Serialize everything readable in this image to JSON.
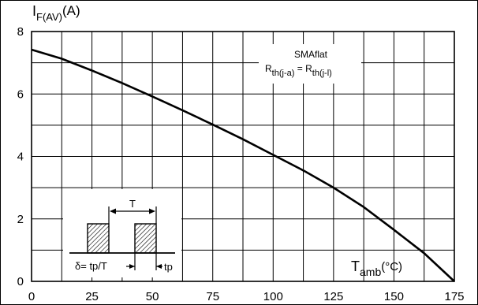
{
  "chart_data": {
    "type": "line",
    "ylabel_main": "I",
    "ylabel_sub": "F(AV)",
    "ylabel_unit": "(A)",
    "xlabel_main": "T",
    "xlabel_sub": "amb",
    "xlabel_unit": "(°C)",
    "xlim": [
      0,
      175
    ],
    "ylim": [
      0,
      8
    ],
    "x_ticks": [
      0,
      25,
      50,
      75,
      100,
      125,
      150,
      175
    ],
    "y_ticks": [
      0,
      2,
      4,
      6,
      8
    ],
    "x_grid": [
      0,
      12.5,
      25,
      37.5,
      50,
      62.5,
      75,
      87.5,
      100,
      112.5,
      125,
      137.5,
      150,
      162.5,
      175
    ],
    "y_grid": [
      0,
      1,
      2,
      3,
      4,
      5,
      6,
      7,
      8
    ],
    "grid": true,
    "series": [
      {
        "x": [
          0,
          12.5,
          25,
          37.5,
          50,
          62.5,
          75,
          87.5,
          100,
          112.5,
          125,
          137.5,
          150,
          162.5,
          175
        ],
        "y": [
          7.42,
          7.13,
          6.75,
          6.35,
          5.92,
          5.48,
          5.02,
          4.55,
          4.05,
          3.55,
          3.0,
          2.38,
          1.65,
          0.9,
          0.0
        ]
      }
    ],
    "annotation": {
      "title": "SMAflat",
      "r_left_main": "R",
      "r_left_sub": "th(j-a)",
      "r_eq": " = ",
      "r_right_main": "R",
      "r_right_sub": "th(j-l)"
    },
    "inset": {
      "period_label": "T",
      "duty_label": "δ= tp/T",
      "tp_label": "tp"
    }
  }
}
